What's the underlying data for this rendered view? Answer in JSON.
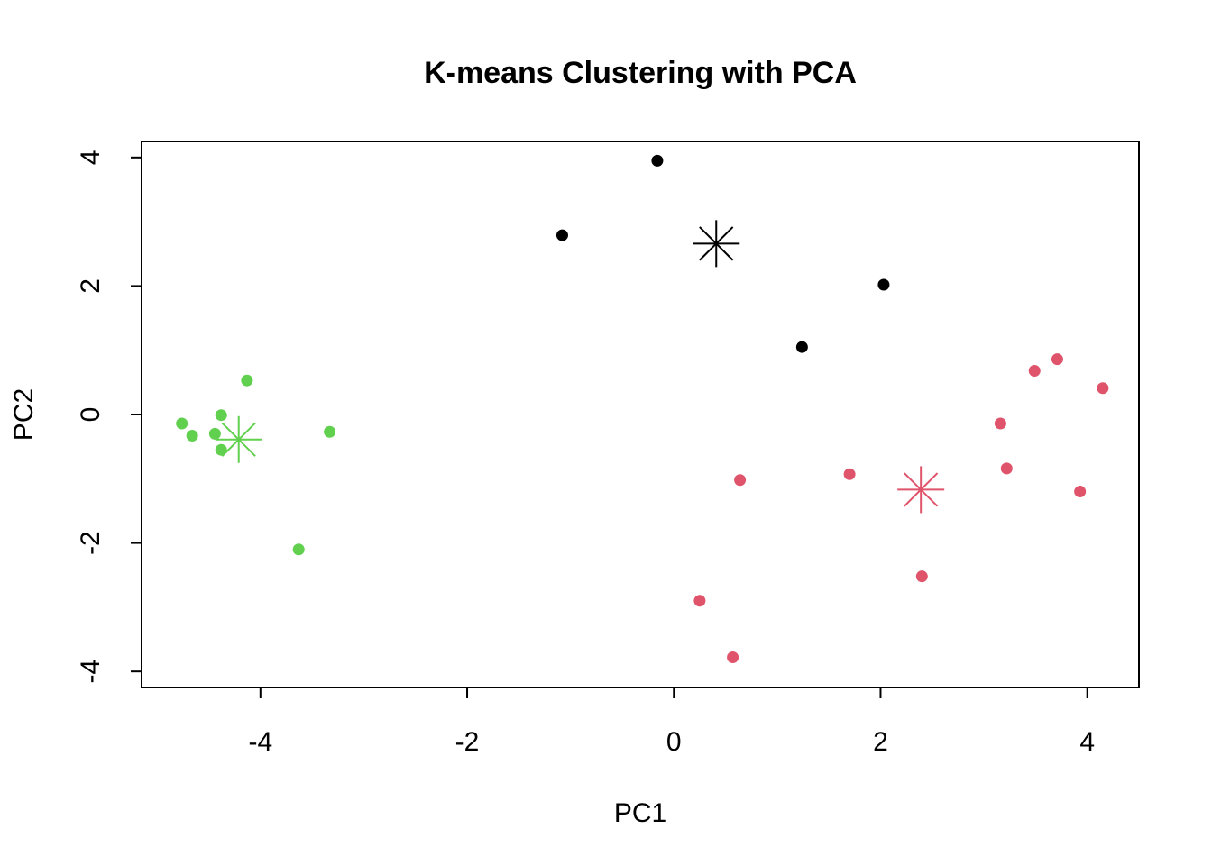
{
  "chart_data": {
    "type": "scatter",
    "title": "K-means Clustering with PCA",
    "xlabel": "PC1",
    "ylabel": "PC2",
    "xlim": [
      -5.15,
      4.5
    ],
    "ylim": [
      -4.25,
      4.25
    ],
    "xticks": [
      -4,
      -2,
      0,
      2,
      4
    ],
    "yticks": [
      -4,
      -2,
      0,
      2,
      4
    ],
    "grid": false,
    "legend": "none",
    "clusters": [
      {
        "id": 1,
        "color": "#000000",
        "points": [
          {
            "x": -0.16,
            "y": 3.95
          },
          {
            "x": -1.08,
            "y": 2.79
          },
          {
            "x": 2.03,
            "y": 2.02
          },
          {
            "x": 1.24,
            "y": 1.05
          }
        ],
        "center": {
          "x": 0.41,
          "y": 2.66
        }
      },
      {
        "id": 2,
        "color": "#DF536B",
        "points": [
          {
            "x": 3.71,
            "y": 0.86
          },
          {
            "x": 3.49,
            "y": 0.68
          },
          {
            "x": 4.15,
            "y": 0.41
          },
          {
            "x": 3.16,
            "y": -0.14
          },
          {
            "x": 3.22,
            "y": -0.84
          },
          {
            "x": 1.7,
            "y": -0.93
          },
          {
            "x": 0.64,
            "y": -1.02
          },
          {
            "x": 3.93,
            "y": -1.2
          },
          {
            "x": 2.4,
            "y": -2.52
          },
          {
            "x": 0.25,
            "y": -2.9
          },
          {
            "x": 0.57,
            "y": -3.78
          }
        ],
        "center": {
          "x": 2.39,
          "y": -1.17
        }
      },
      {
        "id": 3,
        "color": "#61D04F",
        "points": [
          {
            "x": -4.13,
            "y": 0.53
          },
          {
            "x": -4.38,
            "y": -0.01
          },
          {
            "x": -4.76,
            "y": -0.14
          },
          {
            "x": -4.66,
            "y": -0.33
          },
          {
            "x": -4.44,
            "y": -0.3
          },
          {
            "x": -4.38,
            "y": -0.55
          },
          {
            "x": -3.33,
            "y": -0.27
          },
          {
            "x": -3.63,
            "y": -2.1
          }
        ],
        "center": {
          "x": -4.21,
          "y": -0.39
        }
      }
    ]
  }
}
